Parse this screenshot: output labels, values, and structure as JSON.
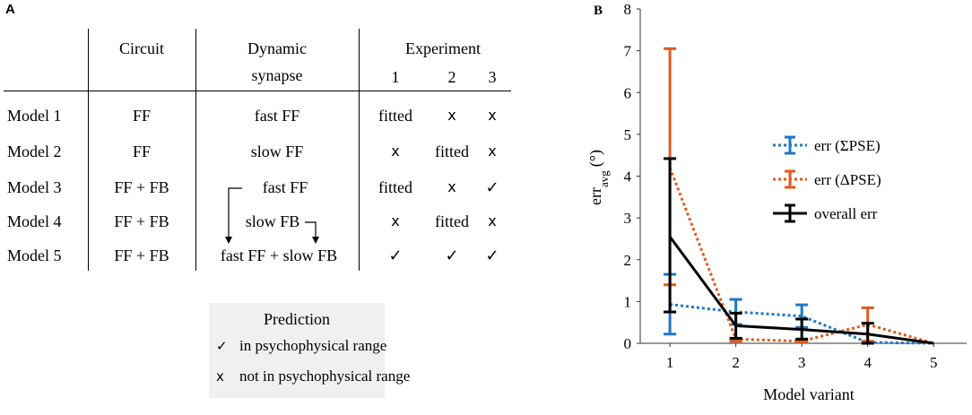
{
  "panel_a": {
    "label": "A",
    "headers": {
      "circuit": "Circuit",
      "dynamic_synapse_line1": "Dynamic",
      "dynamic_synapse_line2": "synapse",
      "experiment": "Experiment",
      "exp1": "1",
      "exp2": "2",
      "exp3": "3"
    },
    "rows": [
      {
        "model": "Model 1",
        "circuit": "FF",
        "synapse": "fast FF",
        "e1": "fitted",
        "e2": "x",
        "e3": "x"
      },
      {
        "model": "Model 2",
        "circuit": "FF",
        "synapse": "slow FF",
        "e1": "x",
        "e2": "fitted",
        "e3": "x"
      },
      {
        "model": "Model 3",
        "circuit": "FF + FB",
        "synapse": "fast FF",
        "e1": "fitted",
        "e2": "x",
        "e3": "check"
      },
      {
        "model": "Model 4",
        "circuit": "FF + FB",
        "synapse": "slow FB",
        "e1": "x",
        "e2": "fitted",
        "e3": "x"
      },
      {
        "model": "Model 5",
        "circuit": "FF + FB",
        "synapse": "fast FF + slow FB",
        "e1": "check",
        "e2": "check",
        "e3": "check"
      }
    ],
    "legend": {
      "title": "Prediction",
      "check_text": "in psychophysical range",
      "cross_text": "not in psychophysical range"
    }
  },
  "chart_data": {
    "panel_label": "B",
    "type": "line",
    "x": [
      1,
      2,
      3,
      4,
      5
    ],
    "xlabel": "Model variant",
    "ylabel_main": "err",
    "ylabel_sub": "avg",
    "ylabel_unit": "(°)",
    "ylim": [
      0,
      8
    ],
    "yticks": [
      0,
      1,
      2,
      3,
      4,
      5,
      6,
      7,
      8
    ],
    "xticks": [
      1,
      2,
      3,
      4,
      5
    ],
    "grid": false,
    "legend_position": "right",
    "series": [
      {
        "name": "err (ΣPSE)",
        "color": "#1f77c4",
        "style": "dotted",
        "values": [
          0.93,
          0.75,
          0.65,
          0.02,
          0.0
        ],
        "err_low": [
          0.22,
          0.45,
          0.38,
          0.02,
          0.0
        ],
        "err_high": [
          1.65,
          1.05,
          0.92,
          0.02,
          0.0
        ]
      },
      {
        "name": "err (ΔPSE)",
        "color": "#e05a1e",
        "style": "dotted",
        "values": [
          4.2,
          0.1,
          0.05,
          0.45,
          0.0
        ],
        "err_low": [
          1.4,
          0.05,
          0.03,
          0.05,
          0.0
        ],
        "err_high": [
          7.05,
          0.1,
          0.05,
          0.85,
          0.0
        ]
      },
      {
        "name": "overall err",
        "color": "#000000",
        "style": "solid",
        "values": [
          2.55,
          0.42,
          0.33,
          0.22,
          0.0
        ],
        "err_low": [
          0.75,
          0.12,
          0.1,
          0.0,
          0.0
        ],
        "err_high": [
          4.42,
          0.72,
          0.58,
          0.48,
          0.0
        ]
      }
    ]
  }
}
